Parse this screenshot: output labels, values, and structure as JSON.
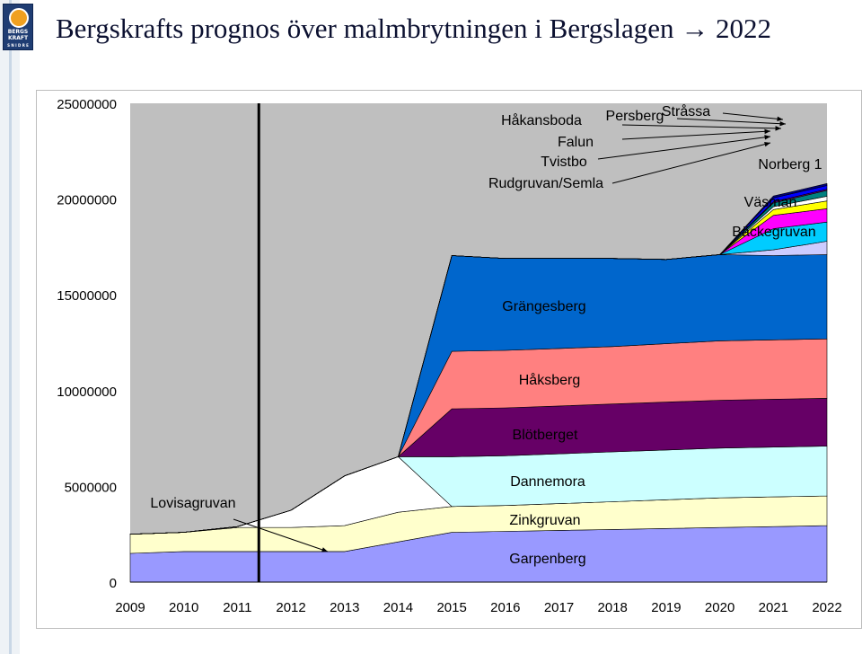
{
  "header": {
    "title": "Bergskrafts prognos över malmbrytningen i Bergslagen → 2022"
  },
  "logo": {
    "line1": "BERGS",
    "line2": "KRAFT",
    "line3": "S N I D R E"
  },
  "colors": {
    "plot_bg": "#bfbfbf",
    "marker_line": "#000000"
  },
  "chart_data": {
    "type": "area",
    "stacked": true,
    "x": [
      2009,
      2010,
      2011,
      2012,
      2013,
      2014,
      2015,
      2016,
      2017,
      2018,
      2019,
      2020,
      2021,
      2022
    ],
    "ylim": [
      0,
      25000000
    ],
    "yticks": [
      "0",
      "5000000",
      "10000000",
      "15000000",
      "20000000",
      "25000000"
    ],
    "ytick_values": [
      0,
      5000000,
      10000000,
      15000000,
      20000000,
      25000000
    ],
    "xticks": [
      "2009",
      "2010",
      "2011",
      "2012",
      "2013",
      "2014",
      "2015",
      "2016",
      "2017",
      "2018",
      "2019",
      "2020",
      "2021",
      "2022"
    ],
    "grid": false,
    "marker_year": 2011.4,
    "series": [
      {
        "name": "Garpenberg",
        "color": "#9999ff",
        "values": [
          1500000,
          1600000,
          1600000,
          1600000,
          1600000,
          2100000,
          2600000,
          2650000,
          2700000,
          2750000,
          2800000,
          2850000,
          2900000,
          2950000
        ]
      },
      {
        "name": "Zinkgruvan",
        "color": "#ffffcc",
        "values": [
          1000000,
          1000000,
          1250000,
          1250000,
          1350000,
          1550000,
          1350000,
          1350000,
          1400000,
          1450000,
          1500000,
          1550000,
          1550000,
          1550000
        ]
      },
      {
        "name": "Lovisagruvan",
        "color": "#ffffff",
        "values": [
          0,
          0,
          50000,
          900000,
          2600000,
          2900000,
          0,
          0,
          0,
          0,
          0,
          0,
          0,
          0
        ]
      },
      {
        "name": "Dannemora",
        "color": "#ccffff",
        "values": [
          0,
          0,
          0,
          0,
          0,
          0,
          2600000,
          2600000,
          2600000,
          2600000,
          2600000,
          2600000,
          2600000,
          2600000
        ]
      },
      {
        "name": "Blötberget",
        "color": "#660066",
        "values": [
          0,
          0,
          0,
          0,
          0,
          0,
          2500000,
          2500000,
          2500000,
          2500000,
          2500000,
          2500000,
          2500000,
          2500000
        ]
      },
      {
        "name": "Håksberg",
        "color": "#ff8080",
        "values": [
          0,
          0,
          0,
          0,
          0,
          0,
          3000000,
          3000000,
          3000000,
          3000000,
          3050000,
          3100000,
          3100000,
          3100000
        ]
      },
      {
        "name": "Grängesberg",
        "color": "#0066cc",
        "values": [
          0,
          0,
          0,
          0,
          0,
          0,
          5000000,
          4800000,
          4700000,
          4600000,
          4400000,
          4500000,
          4400000,
          4400000
        ]
      },
      {
        "name": "Bäckegruvan",
        "color": "#ccccff",
        "values": [
          0,
          0,
          0,
          0,
          0,
          0,
          0,
          0,
          0,
          0,
          0,
          0,
          300000,
          700000
        ]
      },
      {
        "name": "Väsman",
        "color": "#00ccff",
        "values": [
          0,
          0,
          0,
          0,
          0,
          0,
          0,
          0,
          0,
          0,
          0,
          0,
          1100000,
          1000000
        ]
      },
      {
        "name": "Norberg 1",
        "color": "#ff00ff",
        "values": [
          0,
          0,
          0,
          0,
          0,
          0,
          0,
          0,
          0,
          0,
          0,
          0,
          700000,
          700000
        ]
      },
      {
        "name": "Rudgruvan/Semla",
        "color": "#ffff00",
        "values": [
          0,
          0,
          0,
          0,
          0,
          0,
          0,
          0,
          0,
          0,
          0,
          0,
          300000,
          400000
        ]
      },
      {
        "name": "Tvistbo",
        "color": "#ffffff",
        "values": [
          0,
          0,
          0,
          0,
          0,
          0,
          0,
          0,
          0,
          0,
          0,
          0,
          150000,
          250000
        ]
      },
      {
        "name": "Falun",
        "color": "#008080",
        "values": [
          0,
          0,
          0,
          0,
          0,
          0,
          0,
          0,
          0,
          0,
          0,
          0,
          200000,
          300000
        ]
      },
      {
        "name": "Håkansboda",
        "color": "#800080",
        "values": [
          0,
          0,
          0,
          0,
          0,
          0,
          0,
          0,
          0,
          0,
          0,
          0,
          60000,
          60000
        ]
      },
      {
        "name": "Persberg",
        "color": "#0000ff",
        "values": [
          0,
          0,
          0,
          0,
          0,
          0,
          0,
          0,
          0,
          0,
          0,
          0,
          200000,
          200000
        ]
      },
      {
        "name": "Stråssa",
        "color": "#000080",
        "values": [
          0,
          0,
          0,
          0,
          0,
          0,
          0,
          0,
          0,
          0,
          0,
          0,
          100000,
          100000
        ]
      }
    ]
  }
}
